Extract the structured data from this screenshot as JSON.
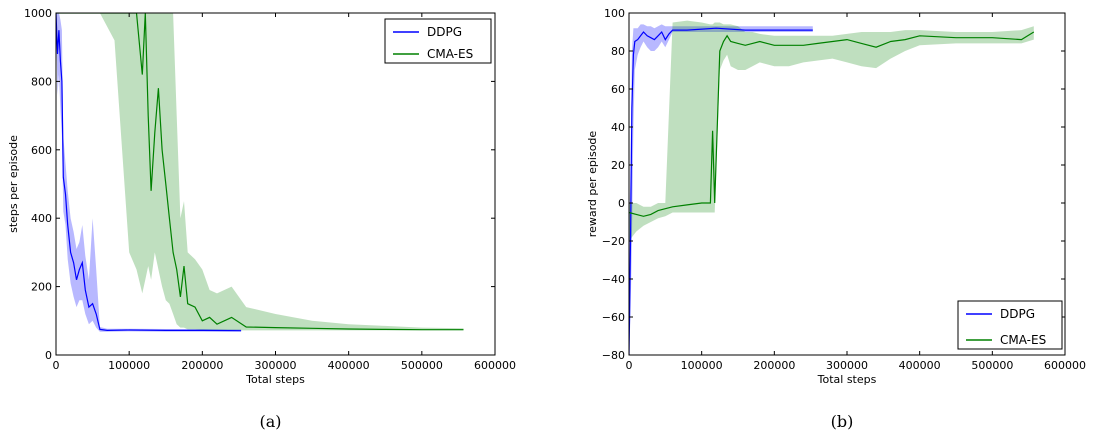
{
  "chart_data": [
    {
      "type": "line",
      "caption": "(a)",
      "xlabel": "Total steps",
      "ylabel": "steps per episode",
      "xlim": [
        0,
        600000
      ],
      "ylim": [
        0,
        1000
      ],
      "xticks": [
        "0",
        "100000",
        "200000",
        "300000",
        "400000",
        "500000",
        "600000"
      ],
      "yticks": [
        "0",
        "200",
        "400",
        "600",
        "800",
        "1000"
      ],
      "grid": false,
      "legend_position": "top-right",
      "series": [
        {
          "name": "DDPG",
          "color": "#0000ff",
          "x": [
            0,
            2000,
            4000,
            6000,
            8000,
            10000,
            13000,
            16000,
            20000,
            24000,
            28000,
            32000,
            36000,
            40000,
            45000,
            50000,
            55000,
            60000,
            70000,
            100000,
            150000,
            200000,
            253000
          ],
          "y": [
            1000,
            880,
            950,
            860,
            800,
            520,
            470,
            380,
            300,
            270,
            220,
            250,
            270,
            190,
            140,
            150,
            120,
            75,
            72,
            73,
            72,
            72,
            71
          ],
          "low": [
            1000,
            760,
            820,
            720,
            640,
            420,
            380,
            280,
            210,
            170,
            140,
            160,
            160,
            120,
            90,
            100,
            80,
            68,
            68,
            69,
            68,
            68,
            68
          ],
          "high": [
            1000,
            1000,
            1000,
            980,
            950,
            640,
            560,
            480,
            400,
            360,
            310,
            330,
            380,
            290,
            220,
            400,
            250,
            82,
            77,
            77,
            76,
            76,
            75
          ]
        },
        {
          "name": "CMA-ES",
          "color": "#008000",
          "x": [
            0,
            60000,
            80000,
            100000,
            110000,
            118000,
            122000,
            126000,
            130000,
            135000,
            140000,
            145000,
            150000,
            155000,
            160000,
            165000,
            170000,
            175000,
            180000,
            190000,
            200000,
            210000,
            220000,
            240000,
            260000,
            300000,
            350000,
            400000,
            450000,
            500000,
            557000
          ],
          "y": [
            1000,
            1000,
            1000,
            1000,
            1000,
            820,
            1000,
            700,
            480,
            650,
            780,
            600,
            500,
            400,
            300,
            250,
            170,
            260,
            150,
            140,
            100,
            110,
            90,
            110,
            82,
            80,
            78,
            76,
            75,
            74,
            74
          ],
          "low": [
            1000,
            1000,
            920,
            300,
            250,
            180,
            220,
            260,
            220,
            300,
            250,
            200,
            160,
            150,
            120,
            90,
            80,
            80,
            75,
            75,
            72,
            72,
            72,
            72,
            72,
            72,
            72,
            72,
            72,
            72,
            72
          ],
          "high": [
            1000,
            1000,
            1000,
            1000,
            1000,
            1000,
            1000,
            1000,
            1000,
            1000,
            1000,
            1000,
            1000,
            1000,
            1000,
            700,
            400,
            450,
            300,
            280,
            250,
            190,
            180,
            200,
            140,
            120,
            100,
            90,
            85,
            80,
            78
          ]
        }
      ]
    },
    {
      "type": "line",
      "caption": "(b)",
      "xlabel": "Total steps",
      "ylabel": "reward per episode",
      "xlim": [
        0,
        600000
      ],
      "ylim": [
        -80,
        100
      ],
      "xticks": [
        "0",
        "100000",
        "200000",
        "300000",
        "400000",
        "500000",
        "600000"
      ],
      "yticks": [
        "−80",
        "−60",
        "−40",
        "−20",
        "0",
        "20",
        "40",
        "60",
        "80",
        "100"
      ],
      "grid": false,
      "legend_position": "bottom-right",
      "series": [
        {
          "name": "DDPG",
          "color": "#0000ff",
          "x": [
            0,
            2000,
            4000,
            6000,
            8000,
            12000,
            16000,
            20000,
            25000,
            30000,
            35000,
            40000,
            45000,
            50000,
            55000,
            60000,
            80000,
            120000,
            160000,
            200000,
            253000
          ],
          "y": [
            -80,
            -20,
            50,
            78,
            85,
            86,
            88,
            90,
            88,
            87,
            86,
            88,
            90,
            86,
            89,
            91,
            91,
            92,
            91,
            91,
            91
          ],
          "low": [
            -80,
            -60,
            -20,
            40,
            70,
            78,
            82,
            85,
            82,
            80,
            80,
            82,
            85,
            82,
            86,
            90,
            90,
            90,
            90,
            90,
            90
          ],
          "high": [
            -20,
            20,
            80,
            92,
            92,
            92,
            94,
            94,
            93,
            93,
            92,
            93,
            94,
            93,
            93,
            93,
            93,
            93,
            93,
            93,
            93
          ]
        },
        {
          "name": "CMA-ES",
          "color": "#008000",
          "x": [
            0,
            10000,
            20000,
            30000,
            40000,
            50000,
            60000,
            80000,
            100000,
            112000,
            115000,
            118000,
            125000,
            130000,
            135000,
            140000,
            150000,
            160000,
            170000,
            180000,
            200000,
            220000,
            240000,
            260000,
            280000,
            300000,
            320000,
            340000,
            360000,
            380000,
            400000,
            450000,
            500000,
            540000,
            557000
          ],
          "y": [
            -5,
            -6,
            -7,
            -6,
            -4,
            -3,
            -2,
            -1,
            0,
            0,
            38,
            0,
            80,
            85,
            88,
            85,
            84,
            83,
            84,
            85,
            83,
            83,
            83,
            84,
            85,
            86,
            84,
            82,
            85,
            86,
            88,
            87,
            87,
            86,
            90
          ],
          "low": [
            -20,
            -15,
            -12,
            -10,
            -8,
            -7,
            -5,
            -5,
            -5,
            -5,
            -5,
            -5,
            70,
            75,
            78,
            72,
            70,
            70,
            72,
            74,
            72,
            72,
            74,
            75,
            76,
            74,
            72,
            71,
            76,
            80,
            83,
            84,
            84,
            84,
            86
          ],
          "high": [
            0,
            0,
            -2,
            -2,
            0,
            0,
            95,
            96,
            95,
            94,
            94,
            95,
            95,
            94,
            94,
            94,
            93,
            90,
            90,
            89,
            88,
            88,
            88,
            88,
            88,
            89,
            90,
            90,
            90,
            91,
            91,
            90,
            90,
            91,
            93
          ]
        }
      ]
    }
  ]
}
